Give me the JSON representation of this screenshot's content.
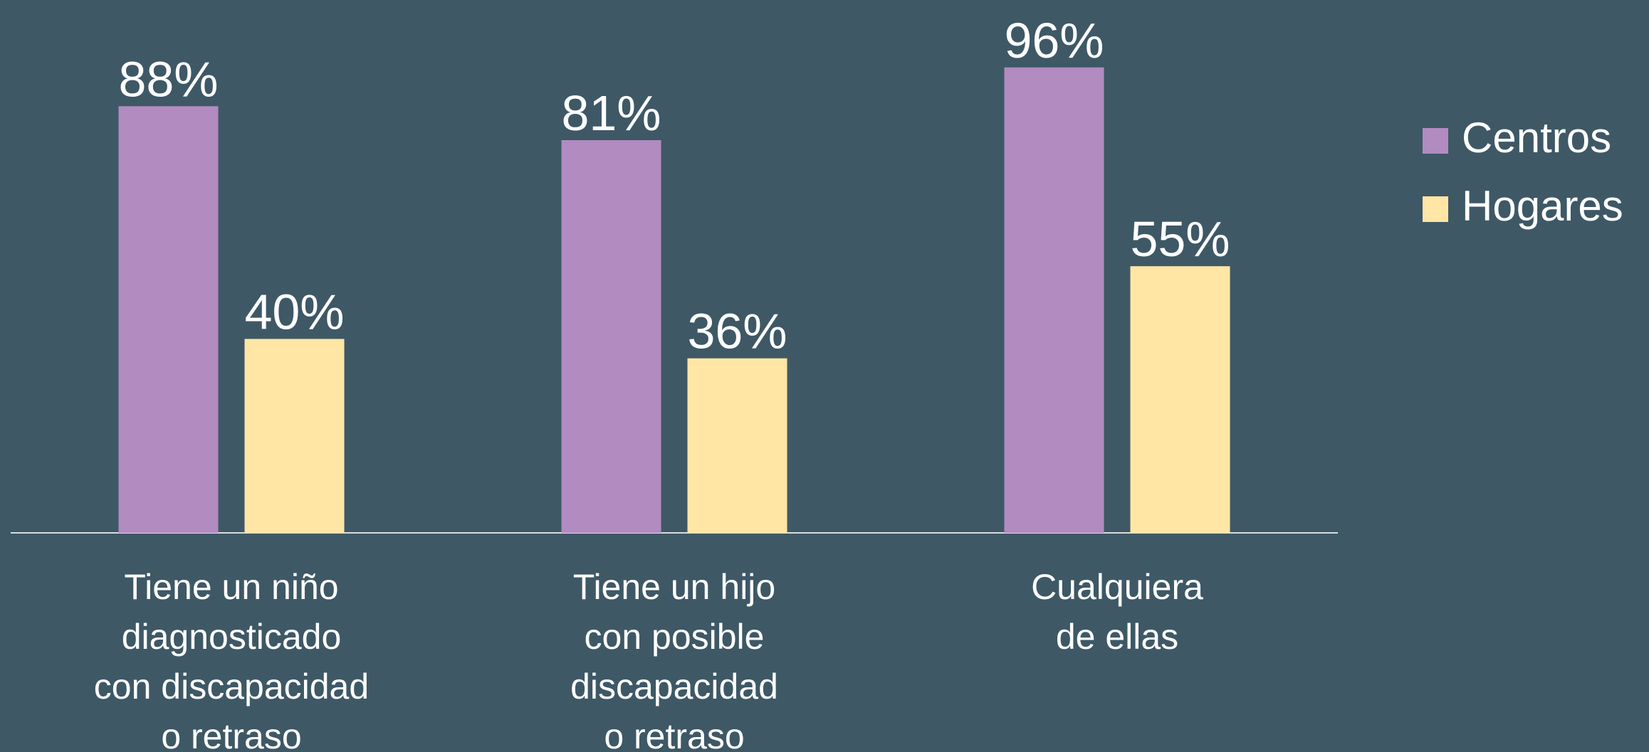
{
  "chart_data": {
    "type": "bar",
    "categories": [
      [
        "Tiene un niño",
        "diagnosticado",
        "con discapacidad",
        "o retraso"
      ],
      [
        "Tiene un hijo",
        "con posible",
        "discapacidad",
        "o retraso"
      ],
      [
        "Cualquiera",
        "de ellas"
      ]
    ],
    "series": [
      {
        "name": "Centros",
        "color": "#b28bc0",
        "values": [
          88,
          81,
          96
        ],
        "value_labels": [
          "88%",
          "81%",
          "96%"
        ]
      },
      {
        "name": "Hogares",
        "color": "#ffe6a5",
        "values": [
          40,
          36,
          55
        ],
        "value_labels": [
          "40%",
          "36%",
          "55%"
        ]
      }
    ],
    "legend": "right"
  }
}
